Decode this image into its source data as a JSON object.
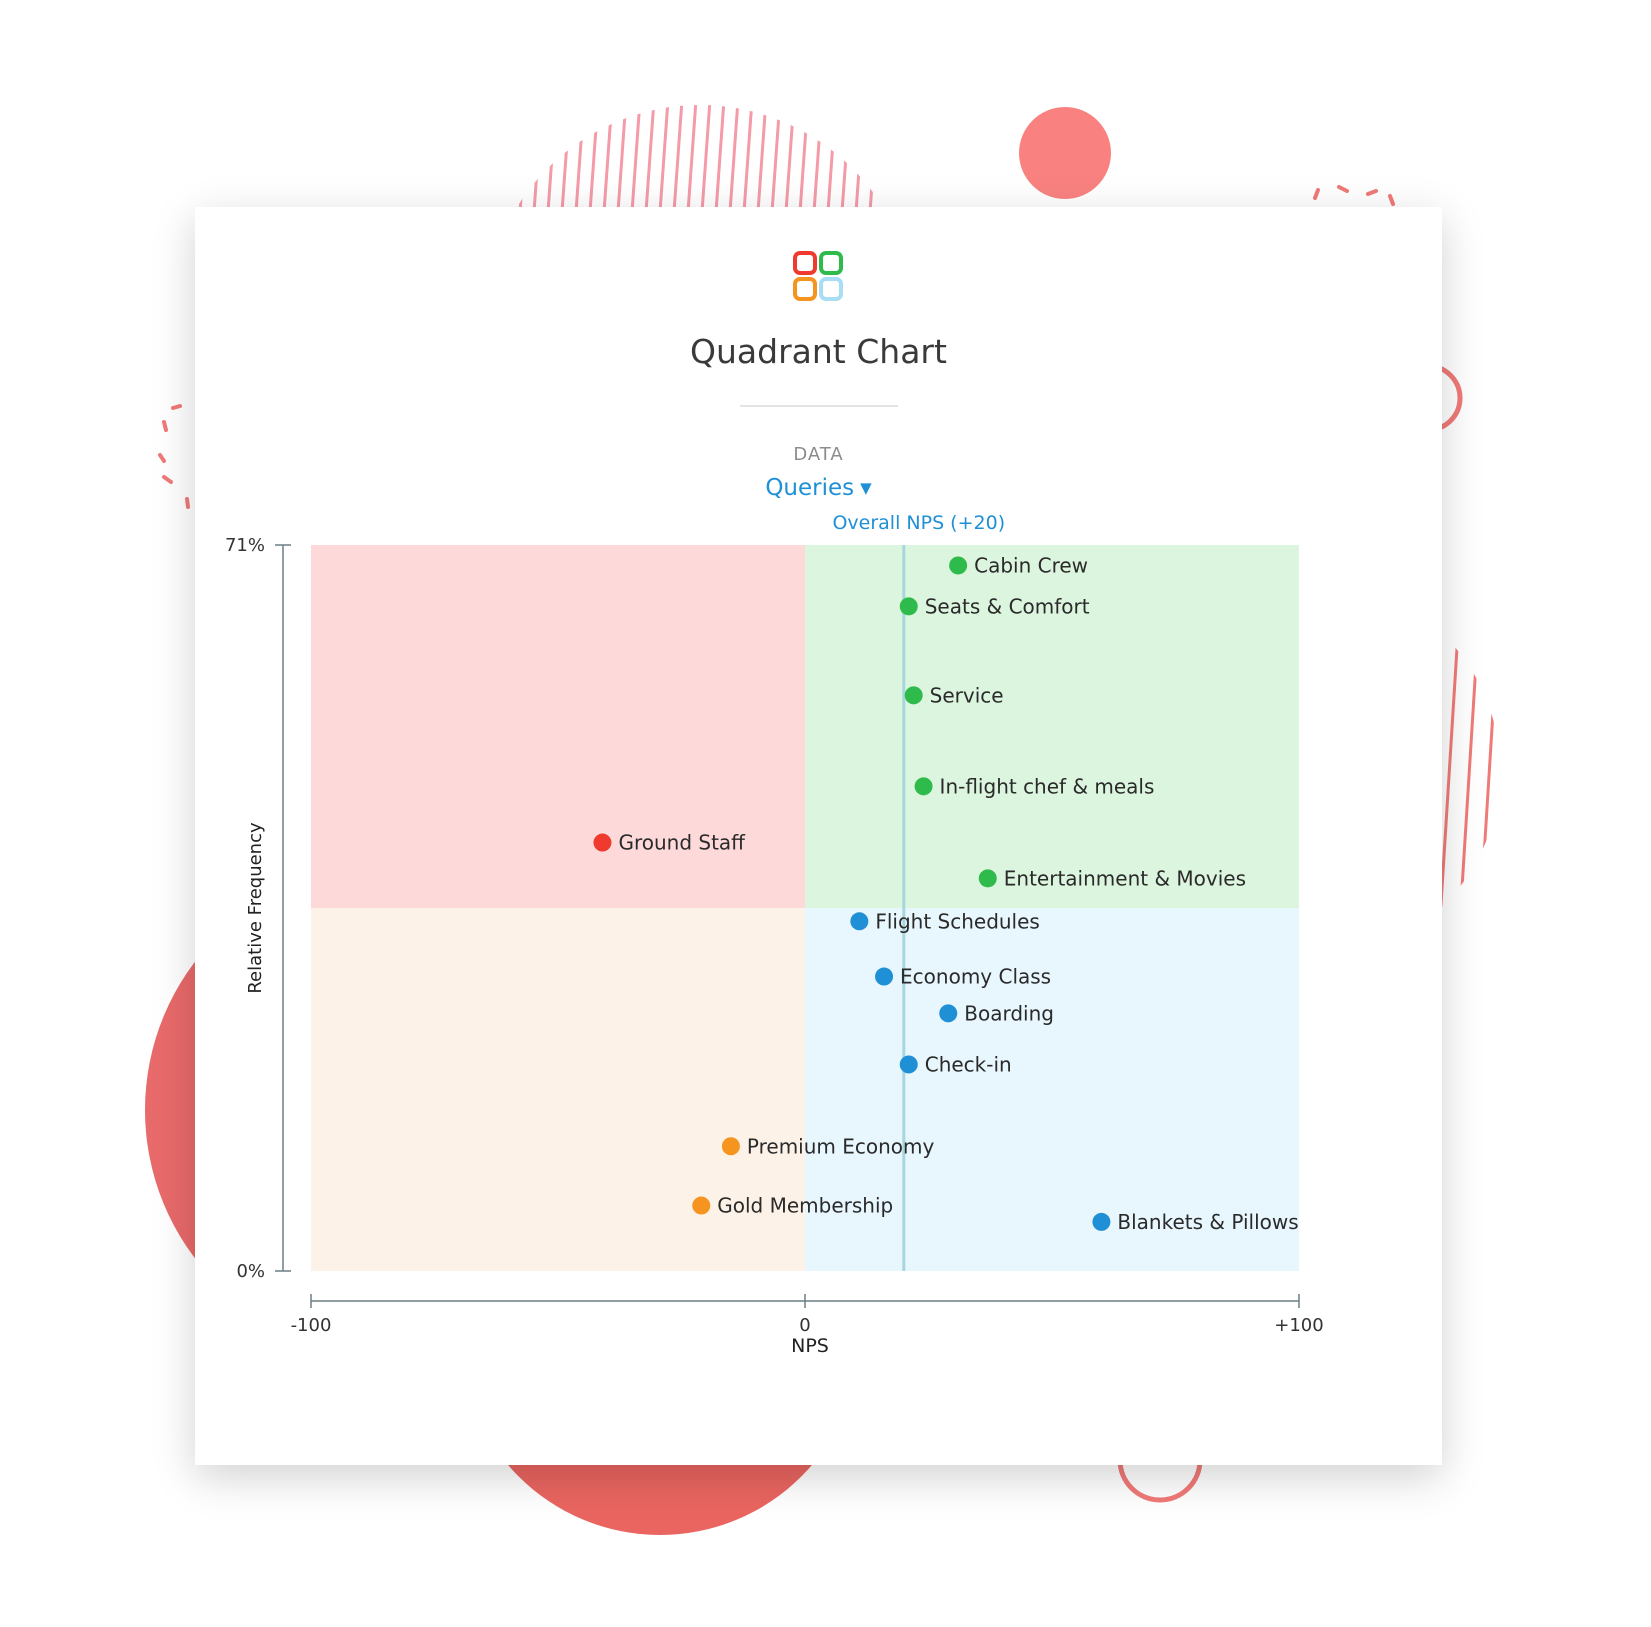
{
  "header": {
    "title": "Quadrant Chart",
    "data_label": "DATA",
    "selector_value": "Queries"
  },
  "colors": {
    "quadrant_top_left": "#fdd9da",
    "quadrant_top_right": "#dcf5df",
    "quadrant_bottom_left": "#fcf2e7",
    "quadrant_bottom_right": "#e8f6fe",
    "reference_line": "#a8d6df",
    "red": "#ef3a2d",
    "green": "#2fbb4b",
    "blue": "#1f8fd6",
    "orange": "#f5941f",
    "accent": "#1f8fd6"
  },
  "logo_icons": [
    "red-square-icon",
    "green-square-icon",
    "orange-square-icon",
    "lightblue-square-icon"
  ],
  "chart_data": {
    "type": "scatter",
    "title": "Quadrant Chart",
    "xlabel": "NPS",
    "ylabel": "Relative Frequency",
    "xlim": [
      -100,
      100
    ],
    "ylim": [
      0,
      71
    ],
    "x_ticks": [
      "-100",
      "0",
      "+100"
    ],
    "y_ticks": [
      "0%",
      "71%"
    ],
    "reference_line": {
      "x": 20,
      "label": "Overall NPS (+20)"
    },
    "quadrant_split": {
      "x": 0,
      "y": 35.5
    },
    "points": [
      {
        "label": "Cabin Crew",
        "x": 31,
        "y": 69,
        "color": "green"
      },
      {
        "label": "Seats & Comfort",
        "x": 21,
        "y": 65,
        "color": "green"
      },
      {
        "label": "Service",
        "x": 22,
        "y": 56.3,
        "color": "green"
      },
      {
        "label": "In-flight chef & meals",
        "x": 24,
        "y": 47.4,
        "color": "green"
      },
      {
        "label": "Ground Staff",
        "x": -41,
        "y": 41.9,
        "color": "red"
      },
      {
        "label": "Entertainment & Movies",
        "x": 37,
        "y": 38.4,
        "color": "green"
      },
      {
        "label": "Flight Schedules",
        "x": 11,
        "y": 34.2,
        "color": "blue"
      },
      {
        "label": "Economy Class",
        "x": 16,
        "y": 28.8,
        "color": "blue"
      },
      {
        "label": "Boarding",
        "x": 29,
        "y": 25.2,
        "color": "blue"
      },
      {
        "label": "Check-in",
        "x": 21,
        "y": 20.2,
        "color": "blue"
      },
      {
        "label": "Premium Economy",
        "x": -15,
        "y": 12.2,
        "color": "orange"
      },
      {
        "label": "Gold Membership",
        "x": -21,
        "y": 6.4,
        "color": "orange"
      },
      {
        "label": "Blankets & Pillows",
        "x": 60,
        "y": 4.8,
        "color": "blue"
      }
    ]
  }
}
